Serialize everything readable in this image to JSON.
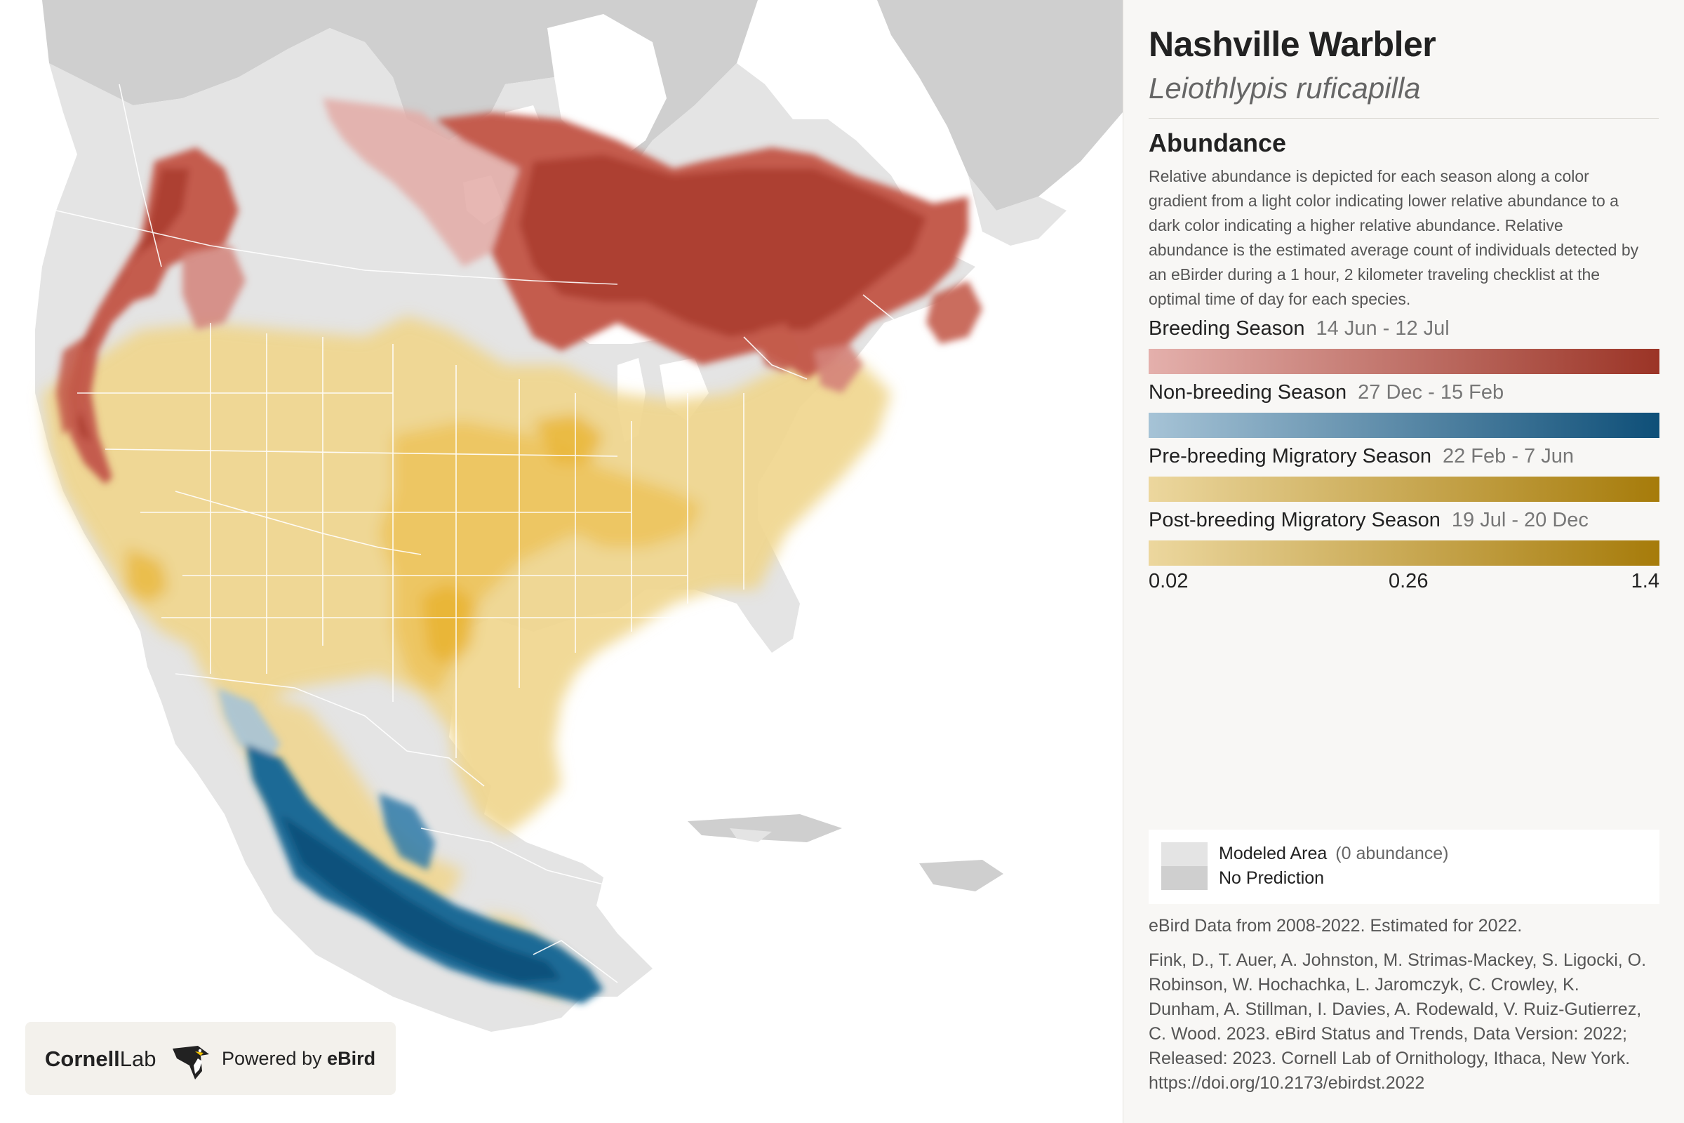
{
  "species": {
    "common_name": "Nashville Warbler",
    "scientific_name": "Leiothlypis ruficapilla"
  },
  "abundance": {
    "heading": "Abundance",
    "description": "Relative abundance is depicted for each season along a color gradient from a light color indicating lower relative abundance to a dark color indicating a higher relative abundance. Relative abundance is the estimated average count of individuals detected by an eBirder during a 1 hour, 2 kilometer traveling checklist at the optimal time of day for each species."
  },
  "seasons": [
    {
      "label": "Breeding Season",
      "dates": "14 Jun - 12 Jul",
      "color_low": "#e4b0ac",
      "color_high": "#9b3426"
    },
    {
      "label": "Non-breeding Season",
      "dates": "27 Dec - 15 Feb",
      "color_low": "#a6c3d6",
      "color_high": "#0e4f78"
    },
    {
      "label": "Pre-breeding Migratory Season",
      "dates": "22 Feb - 7 Jun",
      "color_low": "#ecd79e",
      "color_high": "#a67b0a"
    },
    {
      "label": "Post-breeding Migratory Season",
      "dates": "19 Jul - 20 Dec",
      "color_low": "#ecd79e",
      "color_high": "#a67b0a"
    }
  ],
  "scale": {
    "min": "0.02",
    "mid": "0.26",
    "max": "1.4"
  },
  "map_legend": {
    "modeled_label": "Modeled Area",
    "modeled_note": "(0 abundance)",
    "no_prediction_label": "No Prediction",
    "modeled_color": "#e4e4e4",
    "no_prediction_color": "#cfcfcf"
  },
  "data_years": "eBird Data from 2008-2022. Estimated for 2022.",
  "citation": "Fink, D., T. Auer, A. Johnston, M. Strimas-Mackey, S. Ligocki, O. Robinson, W. Hochachka, L. Jaromczyk, C. Crowley, K. Dunham, A. Stillman, I. Davies, A. Rodewald, V. Ruiz-Gutierrez, C. Wood. 2023. eBird Status and Trends, Data Version: 2022; Released: 2023. Cornell Lab of Ornithology, Ithaca, New York. https://doi.org/10.2173/ebirdst.2022",
  "branding": {
    "cornell": "Cornell",
    "lab": "Lab",
    "powered_prefix": "Powered by",
    "powered_brand": "eBird"
  }
}
